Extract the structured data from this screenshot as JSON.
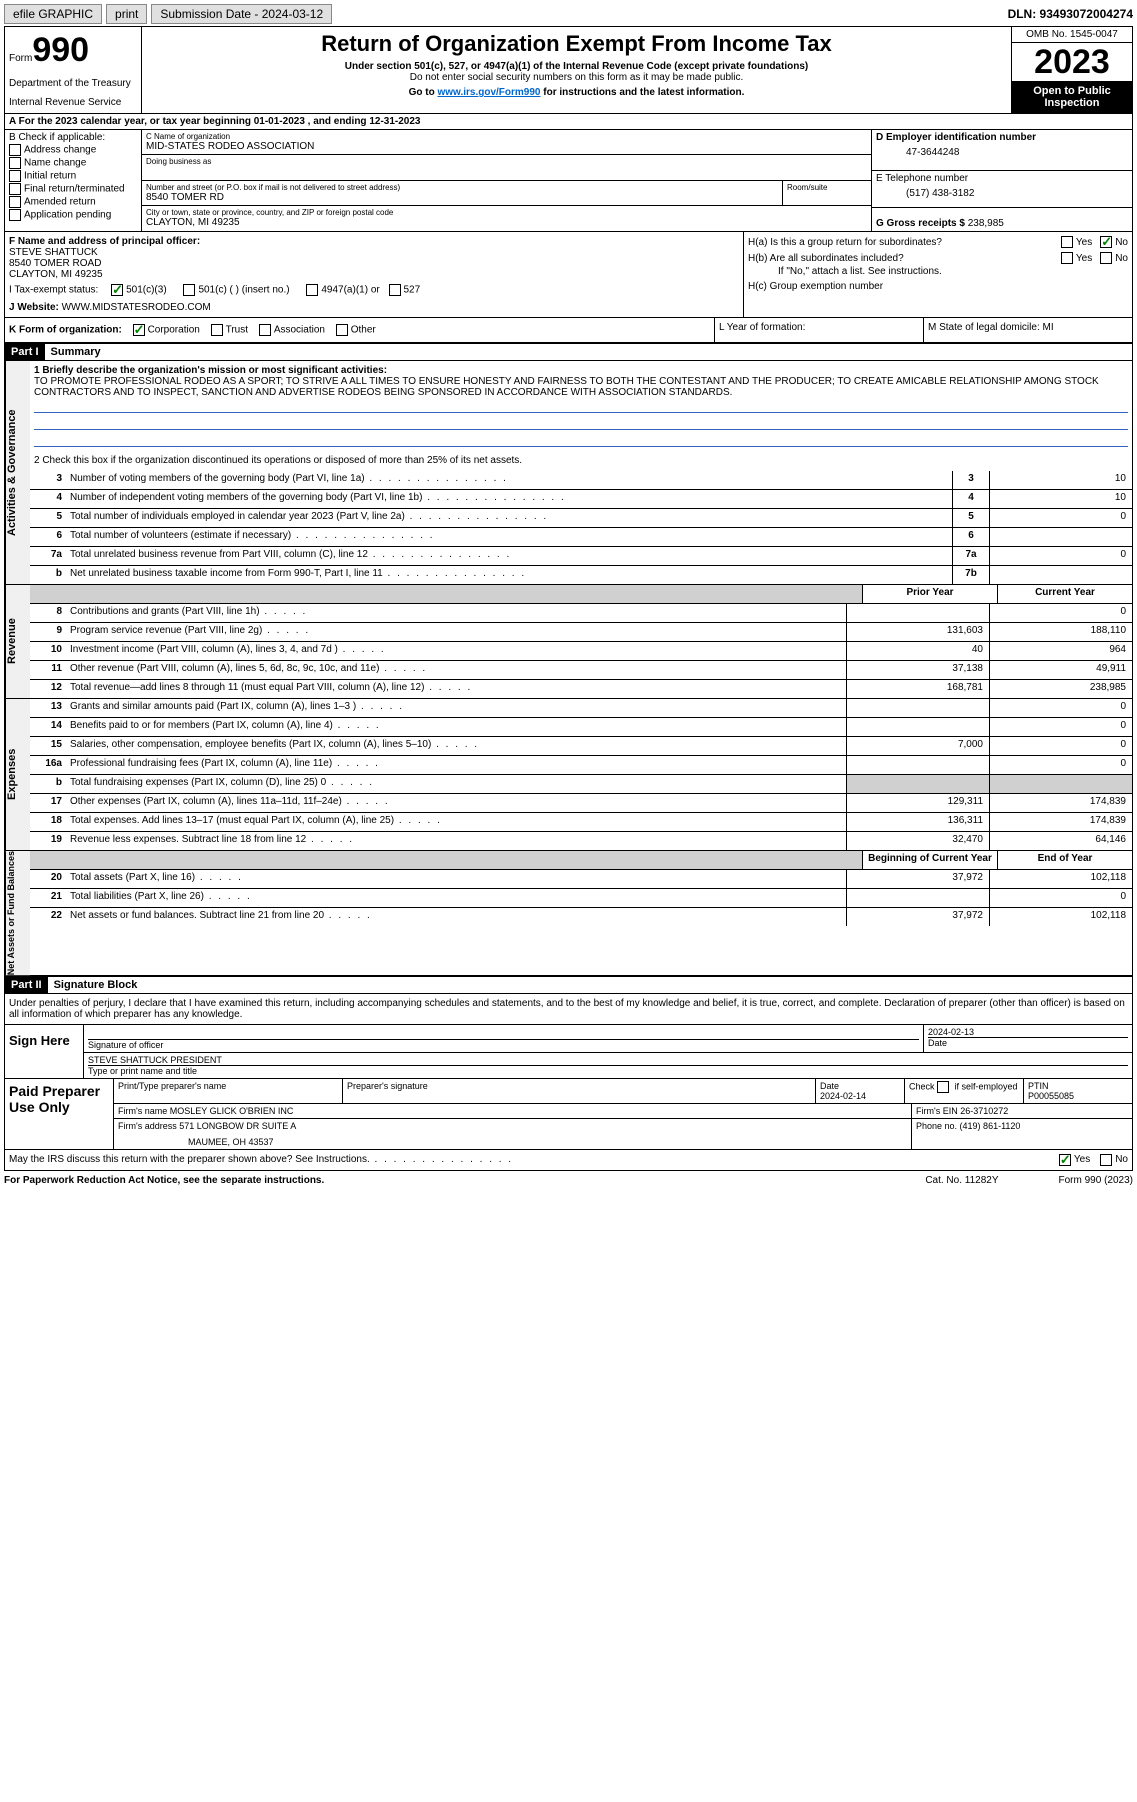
{
  "topbar": {
    "efile_label": "efile GRAPHIC",
    "print_btn": "print",
    "sub_date_label": "Submission Date - 2024-03-12",
    "dln": "DLN: 93493072004274"
  },
  "header": {
    "form_label": "Form",
    "form_number": "990",
    "dept": "Department of the Treasury",
    "irs": "Internal Revenue Service",
    "title": "Return of Organization Exempt From Income Tax",
    "subtitle": "Under section 501(c), 527, or 4947(a)(1) of the Internal Revenue Code (except private foundations)",
    "ssn_note": "Do not enter social security numbers on this form as it may be made public.",
    "goto": "Go to ",
    "goto_link": "www.irs.gov/Form990",
    "goto_rest": " for instructions and the latest information.",
    "omb": "OMB No. 1545-0047",
    "year": "2023",
    "inspection": "Open to Public Inspection"
  },
  "row_a": "A For the 2023 calendar year, or tax year beginning 01-01-2023   , and ending 12-31-2023",
  "section_b": {
    "b_label": "B Check if applicable:",
    "checks": [
      "Address change",
      "Name change",
      "Initial return",
      "Final return/terminated",
      "Amended return",
      "Application pending"
    ]
  },
  "section_c": {
    "name_label": "C Name of organization",
    "name": "MID-STATES RODEO ASSOCIATION",
    "dba_label": "Doing business as",
    "addr_label": "Number and street (or P.O. box if mail is not delivered to street address)",
    "room_label": "Room/suite",
    "addr": "8540 TOMER RD",
    "city_label": "City or town, state or province, country, and ZIP or foreign postal code",
    "city": "CLAYTON, MI  49235"
  },
  "section_d": {
    "label": "D Employer identification number",
    "value": "47-3644248"
  },
  "section_e": {
    "label": "E Telephone number",
    "value": "(517) 438-3182"
  },
  "section_g": {
    "label": "G Gross receipts $",
    "value": "238,985"
  },
  "section_f": {
    "label": "F Name and address of principal officer:",
    "name": "STEVE SHATTUCK",
    "addr1": "8540 TOMER ROAD",
    "addr2": "CLAYTON, MI  49235"
  },
  "section_h": {
    "ha": "H(a)  Is this a group return for subordinates?",
    "hb": "H(b)  Are all subordinates included?",
    "hb_note": "If \"No,\" attach a list. See instructions.",
    "hc": "H(c)  Group exemption number ",
    "yes": "Yes",
    "no": "No"
  },
  "section_i": {
    "label": "I   Tax-exempt status:",
    "opt1": "501(c)(3)",
    "opt2": "501(c) (  ) (insert no.)",
    "opt3": "4947(a)(1) or",
    "opt4": "527"
  },
  "section_j": {
    "label": "J   Website: ",
    "value": "WWW.MIDSTATESRODEO.COM"
  },
  "section_k": {
    "label": "K Form of organization:",
    "opts": [
      "Corporation",
      "Trust",
      "Association",
      "Other"
    ],
    "l_label": "L Year of formation:",
    "m_label": "M State of legal domicile: MI"
  },
  "part1": {
    "header": "Part I",
    "title": "Summary",
    "q1_label": "1   Briefly describe the organization's mission or most significant activities:",
    "q1_text": "TO PROMOTE PROFESSIONAL RODEO AS A SPORT; TO STRIVE A ALL TIMES TO ENSURE HONESTY AND FAIRNESS TO BOTH THE CONTESTANT AND THE PRODUCER; TO CREATE AMICABLE RELATIONSHIP AMONG STOCK CONTRACTORS AND TO INSPECT, SANCTION AND ADVERTISE RODEOS BEING SPONSORED IN ACCORDANCE WITH ASSOCIATION STANDARDS.",
    "q2": "2   Check this box      if the organization discontinued its operations or disposed of more than 25% of its net assets.",
    "rows_gov": [
      {
        "n": "3",
        "t": "Number of voting members of the governing body (Part VI, line 1a)",
        "b": "3",
        "v": "10"
      },
      {
        "n": "4",
        "t": "Number of independent voting members of the governing body (Part VI, line 1b)",
        "b": "4",
        "v": "10"
      },
      {
        "n": "5",
        "t": "Total number of individuals employed in calendar year 2023 (Part V, line 2a)",
        "b": "5",
        "v": "0"
      },
      {
        "n": "6",
        "t": "Total number of volunteers (estimate if necessary)",
        "b": "6",
        "v": ""
      },
      {
        "n": "7a",
        "t": "Total unrelated business revenue from Part VIII, column (C), line 12",
        "b": "7a",
        "v": "0"
      },
      {
        "n": "b",
        "t": "Net unrelated business taxable income from Form 990-T, Part I, line 11",
        "b": "7b",
        "v": ""
      }
    ],
    "col_headers": {
      "prior": "Prior Year",
      "current": "Current Year"
    },
    "rows_rev": [
      {
        "n": "8",
        "t": "Contributions and grants (Part VIII, line 1h)",
        "p": "",
        "c": "0"
      },
      {
        "n": "9",
        "t": "Program service revenue (Part VIII, line 2g)",
        "p": "131,603",
        "c": "188,110"
      },
      {
        "n": "10",
        "t": "Investment income (Part VIII, column (A), lines 3, 4, and 7d )",
        "p": "40",
        "c": "964"
      },
      {
        "n": "11",
        "t": "Other revenue (Part VIII, column (A), lines 5, 6d, 8c, 9c, 10c, and 11e)",
        "p": "37,138",
        "c": "49,911"
      },
      {
        "n": "12",
        "t": "Total revenue—add lines 8 through 11 (must equal Part VIII, column (A), line 12)",
        "p": "168,781",
        "c": "238,985"
      }
    ],
    "rows_exp": [
      {
        "n": "13",
        "t": "Grants and similar amounts paid (Part IX, column (A), lines 1–3 )",
        "p": "",
        "c": "0"
      },
      {
        "n": "14",
        "t": "Benefits paid to or for members (Part IX, column (A), line 4)",
        "p": "",
        "c": "0"
      },
      {
        "n": "15",
        "t": "Salaries, other compensation, employee benefits (Part IX, column (A), lines 5–10)",
        "p": "7,000",
        "c": "0"
      },
      {
        "n": "16a",
        "t": "Professional fundraising fees (Part IX, column (A), line 11e)",
        "p": "",
        "c": "0"
      },
      {
        "n": "b",
        "t": "Total fundraising expenses (Part IX, column (D), line 25) 0",
        "p": null,
        "c": null
      },
      {
        "n": "17",
        "t": "Other expenses (Part IX, column (A), lines 11a–11d, 11f–24e)",
        "p": "129,311",
        "c": "174,839"
      },
      {
        "n": "18",
        "t": "Total expenses. Add lines 13–17 (must equal Part IX, column (A), line 25)",
        "p": "136,311",
        "c": "174,839"
      },
      {
        "n": "19",
        "t": "Revenue less expenses. Subtract line 18 from line 12",
        "p": "32,470",
        "c": "64,146"
      }
    ],
    "net_headers": {
      "begin": "Beginning of Current Year",
      "end": "End of Year"
    },
    "rows_net": [
      {
        "n": "20",
        "t": "Total assets (Part X, line 16)",
        "p": "37,972",
        "c": "102,118"
      },
      {
        "n": "21",
        "t": "Total liabilities (Part X, line 26)",
        "p": "",
        "c": "0"
      },
      {
        "n": "22",
        "t": "Net assets or fund balances. Subtract line 21 from line 20",
        "p": "37,972",
        "c": "102,118"
      }
    ]
  },
  "side_labels": {
    "gov": "Activities & Governance",
    "rev": "Revenue",
    "exp": "Expenses",
    "net": "Net Assets or Fund Balances"
  },
  "part2": {
    "header": "Part II",
    "title": "Signature Block",
    "perjury": "Under penalties of perjury, I declare that I have examined this return, including accompanying schedules and statements, and to the best of my knowledge and belief, it is true, correct, and complete. Declaration of preparer (other than officer) is based on all information of which preparer has any knowledge."
  },
  "sign": {
    "label": "Sign Here",
    "sig_label": "Signature of officer",
    "date_label": "Date",
    "date": "2024-02-13",
    "name": "STEVE SHATTUCK PRESIDENT",
    "name_label": "Type or print name and title"
  },
  "prep": {
    "label": "Paid Preparer Use Only",
    "h1": "Print/Type preparer's name",
    "h2": "Preparer's signature",
    "h3": "Date",
    "h4": "Check        if self-employed",
    "h5": "PTIN",
    "date": "2024-02-14",
    "ptin": "P00055085",
    "firm_label": "Firm's name  ",
    "firm": "MOSLEY GLICK O'BRIEN INC",
    "ein_label": "Firm's EIN  ",
    "ein": "26-3710272",
    "addr_label": "Firm's address ",
    "addr1": "571 LONGBOW DR SUITE A",
    "addr2": "MAUMEE, OH  43537",
    "phone_label": "Phone no. ",
    "phone": "(419) 861-1120"
  },
  "discuss": {
    "text": "May the IRS discuss this return with the preparer shown above? See Instructions.",
    "yes": "Yes",
    "no": "No"
  },
  "footer": {
    "pra": "For Paperwork Reduction Act Notice, see the separate instructions.",
    "cat": "Cat. No. 11282Y",
    "form": "Form 990 (2023)"
  }
}
